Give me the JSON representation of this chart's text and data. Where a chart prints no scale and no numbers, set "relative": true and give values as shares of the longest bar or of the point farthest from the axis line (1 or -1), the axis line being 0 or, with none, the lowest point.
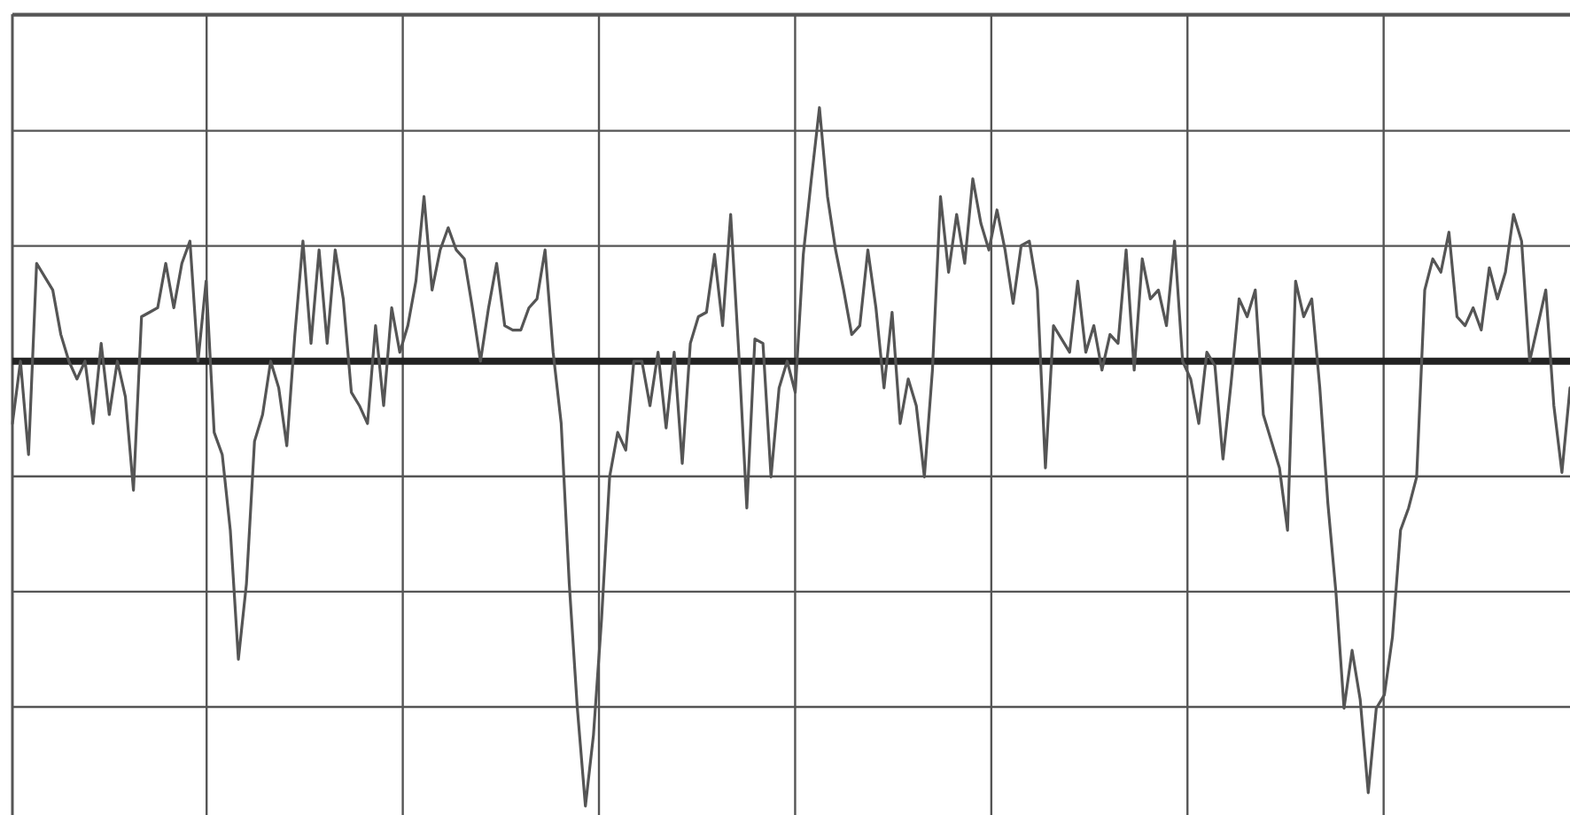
{
  "chart_data": {
    "type": "line",
    "relative": true,
    "grid": true,
    "legend": false,
    "marker": "none",
    "line_style": "solid",
    "categories": [
      null,
      null,
      null,
      null,
      null,
      null,
      null,
      null,
      null,
      null,
      null,
      null,
      null,
      null,
      null,
      null,
      null,
      null,
      null,
      null,
      null,
      null,
      null,
      null,
      null,
      null,
      null,
      null,
      null,
      null,
      null,
      null,
      null,
      null,
      null,
      null,
      null,
      null,
      null,
      null,
      null,
      null,
      null,
      null,
      null,
      null,
      null,
      null,
      null,
      null,
      null,
      null,
      null,
      null,
      null,
      null,
      null,
      null,
      null,
      null,
      null,
      null,
      null,
      null,
      null,
      null,
      null,
      null,
      null,
      null,
      null,
      null,
      null,
      null,
      null,
      null,
      null,
      null,
      null,
      null,
      null,
      null,
      null,
      null,
      null,
      null,
      null,
      null,
      null,
      null,
      null,
      null,
      null,
      null,
      null,
      null,
      null,
      null,
      null,
      null,
      null,
      null,
      null,
      null,
      null,
      null,
      null,
      null,
      null,
      null,
      null,
      null,
      null,
      null,
      null,
      null,
      null,
      null,
      null,
      null,
      null,
      null,
      null,
      null,
      null,
      null,
      null,
      null,
      null,
      null,
      null,
      null,
      null,
      null,
      null,
      null,
      null,
      null,
      null,
      null,
      null,
      null,
      null,
      null,
      null,
      null,
      null,
      null,
      null,
      null,
      null,
      null,
      null,
      null,
      null,
      null,
      null,
      null,
      null,
      null,
      null,
      null,
      null,
      null,
      null,
      null,
      null,
      null,
      null,
      null,
      null,
      null,
      null,
      null,
      null,
      null,
      null,
      null,
      null,
      null,
      null,
      null,
      null,
      null,
      null,
      null,
      null,
      null,
      null,
      null,
      null,
      null,
      null,
      null
    ],
    "series": [
      {
        "color": "#555555",
        "values": [
          -0.14,
          0,
          -0.21,
          0.22,
          0.19,
          0.16,
          0.06,
          0.0,
          -0.04,
          0.0,
          -0.14,
          0.04,
          -0.12,
          0.0,
          -0.08,
          -0.29,
          0.1,
          0.11,
          0.12,
          0.22,
          0.12,
          0.22,
          0.27,
          0.0,
          0.18,
          -0.16,
          -0.21,
          -0.38,
          -0.67,
          -0.5,
          -0.18,
          -0.12,
          0.0,
          -0.06,
          -0.19,
          0.06,
          0.27,
          0.04,
          0.25,
          0.04,
          0.25,
          0.14,
          -0.07,
          -0.1,
          -0.14,
          0.08,
          -0.1,
          0.12,
          0.02,
          0.08,
          0.18,
          0.37,
          0.16,
          0.25,
          0.3,
          0.25,
          0.23,
          0.12,
          0.0,
          0.12,
          0.22,
          0.08,
          0.07,
          0.07,
          0.12,
          0.14,
          0.25,
          0.02,
          -0.14,
          -0.5,
          -0.78,
          -1,
          -0.84,
          -0.58,
          -0.26,
          -0.16,
          -0.2,
          0.0,
          0.0,
          -0.1,
          0.02,
          -0.15,
          0.02,
          -0.23,
          0.04,
          0.1,
          0.11,
          0.24,
          0.08,
          0.33,
          0.02,
          -0.33,
          0.05,
          0.04,
          -0.26,
          -0.06,
          0.0,
          -0.07,
          0.24,
          0.41,
          0.57,
          0.37,
          0.25,
          0.16,
          0.06,
          0.08,
          0.25,
          0.12,
          -0.06,
          0.11,
          -0.14,
          -0.04,
          -0.1,
          -0.26,
          -0.02,
          0.37,
          0.2,
          0.33,
          0.22,
          0.41,
          0.31,
          0.25,
          0.34,
          0.25,
          0.13,
          0.26,
          0.27,
          0.16,
          -0.24,
          0.08,
          0.05,
          0.02,
          0.18,
          0.02,
          0.08,
          -0.02,
          0.06,
          0.04,
          0.25,
          -0.02,
          0.23,
          0.14,
          0.16,
          0.08,
          0.27,
          0.0,
          -0.04,
          -0.14,
          0.02,
          -0.01,
          -0.22,
          -0.05,
          0.14,
          0.1,
          0.16,
          -0.12,
          -0.18,
          -0.24,
          -0.38,
          0.18,
          0.1,
          0.14,
          -0.06,
          -0.32,
          -0.52,
          -0.78,
          -0.65,
          -0.76,
          -0.97,
          -0.78,
          -0.75,
          -0.62,
          -0.38,
          -0.33,
          -0.26,
          0.16,
          0.23,
          0.2,
          0.29,
          0.1,
          0.08,
          0.12,
          0.07,
          0.21,
          0.14,
          0.2,
          0.33,
          0.27,
          0.0,
          0.08,
          0.16,
          -0.1,
          -0.25,
          -0.06
        ]
      }
    ]
  }
}
